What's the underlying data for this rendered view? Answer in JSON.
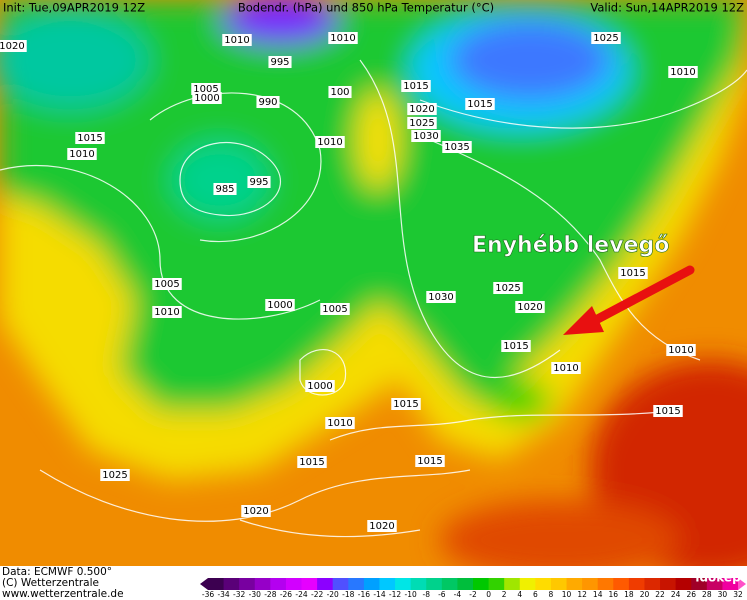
{
  "header": {
    "init": "Init: Tue,09APR2019 12Z",
    "title": "Bodendr. (hPa) und 850 hPa Temperatur (°C)",
    "valid": "Valid: Sun,14APR2019 12Z"
  },
  "isobar_labels": [
    1020,
    1010,
    1010,
    995,
    1005,
    1000,
    990,
    100,
    1015,
    1025,
    1010,
    1015,
    1020,
    1025,
    1030,
    1035,
    1015,
    1010,
    1010,
    985,
    995,
    1015,
    1005,
    1010,
    1000,
    1005,
    1030,
    1025,
    1020,
    1015,
    1010,
    1010,
    1000,
    1015,
    1010,
    1015,
    1015,
    1015,
    1025,
    1020,
    1020
  ],
  "annotation": "Enyhébb levegő",
  "logo": "időkép",
  "footer": {
    "data": "Data: ECMWF  0.500°",
    "copyright": "(C) Wetterzentrale",
    "url": "www.wetterzentrale.de"
  },
  "legend": {
    "ticks": [
      -36,
      -34,
      -32,
      -30,
      -28,
      -26,
      -24,
      -22,
      -20,
      -18,
      -16,
      -14,
      -12,
      -10,
      -8,
      -6,
      -4,
      -2,
      0,
      2,
      4,
      6,
      8,
      10,
      12,
      14,
      16,
      18,
      20,
      22,
      24,
      26,
      28,
      30,
      32
    ],
    "colors": [
      "#3c0050",
      "#5a0078",
      "#7800a0",
      "#9600c8",
      "#b400f0",
      "#d200ff",
      "#e600ff",
      "#8c00ff",
      "#5050ff",
      "#2878ff",
      "#00a0ff",
      "#00c8ff",
      "#00e6e6",
      "#00dcb4",
      "#00d28c",
      "#00c864",
      "#00be3c",
      "#00c800",
      "#32d200",
      "#a0e600",
      "#f0f000",
      "#ffdc00",
      "#ffc800",
      "#ffaa00",
      "#ff9600",
      "#ff7800",
      "#ff5a00",
      "#f03c00",
      "#dc2800",
      "#c81400",
      "#b40000",
      "#a00028",
      "#c80064",
      "#f000a0",
      "#ff50c8"
    ]
  }
}
